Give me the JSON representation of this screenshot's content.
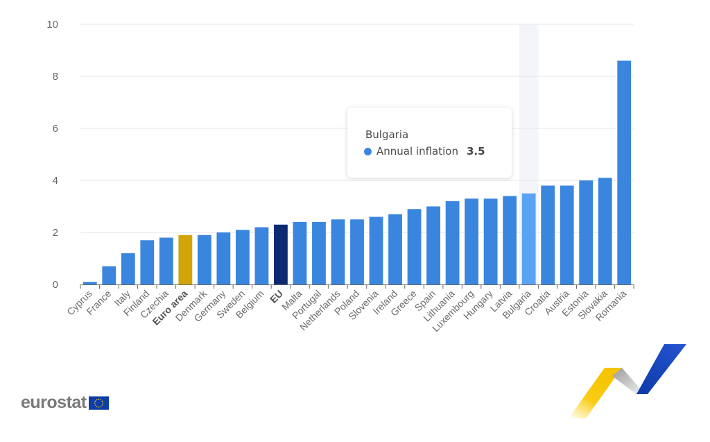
{
  "chart_data": {
    "type": "bar",
    "title": "",
    "xlabel": "",
    "ylabel": "",
    "ylim": [
      0,
      10
    ],
    "yticks": [
      0,
      2,
      4,
      6,
      8,
      10
    ],
    "grid": true,
    "categories": [
      "Cyprus",
      "France",
      "Italy",
      "Finland",
      "Czechia",
      "Euro area",
      "Denmark",
      "Germany",
      "Sweden",
      "Belgium",
      "EU",
      "Malta",
      "Portugal",
      "Netherlands",
      "Poland",
      "Slovenia",
      "Ireland",
      "Greece",
      "Spain",
      "Lithuania",
      "Luxembourg",
      "Hungary",
      "Latvia",
      "Bulgaria",
      "Croatia",
      "Austria",
      "Estonia",
      "Slovakia",
      "Romania"
    ],
    "series": [
      {
        "name": "Annual inflation",
        "values": [
          0.1,
          0.7,
          1.2,
          1.7,
          1.8,
          1.9,
          1.9,
          2.0,
          2.1,
          2.2,
          2.3,
          2.4,
          2.4,
          2.5,
          2.5,
          2.6,
          2.7,
          2.9,
          3.0,
          3.2,
          3.3,
          3.3,
          3.4,
          3.5,
          3.8,
          3.8,
          4.0,
          4.1,
          8.6
        ]
      }
    ],
    "bold_categories": [
      "Euro area",
      "EU"
    ],
    "colors": {
      "default": "#3a86de",
      "Euro area": "#d1a40a",
      "EU": "#0c2a72",
      "hovered": "#5aa2f2",
      "hover_band": "#f3f5fb",
      "grid": "#e6e6e6",
      "axis": "#666666"
    },
    "hovered_category": "Bulgaria"
  },
  "tooltip": {
    "title": "Bulgaria",
    "series_label": "Annual inflation",
    "value": "3.5"
  },
  "logo": {
    "text": "eurostat"
  }
}
